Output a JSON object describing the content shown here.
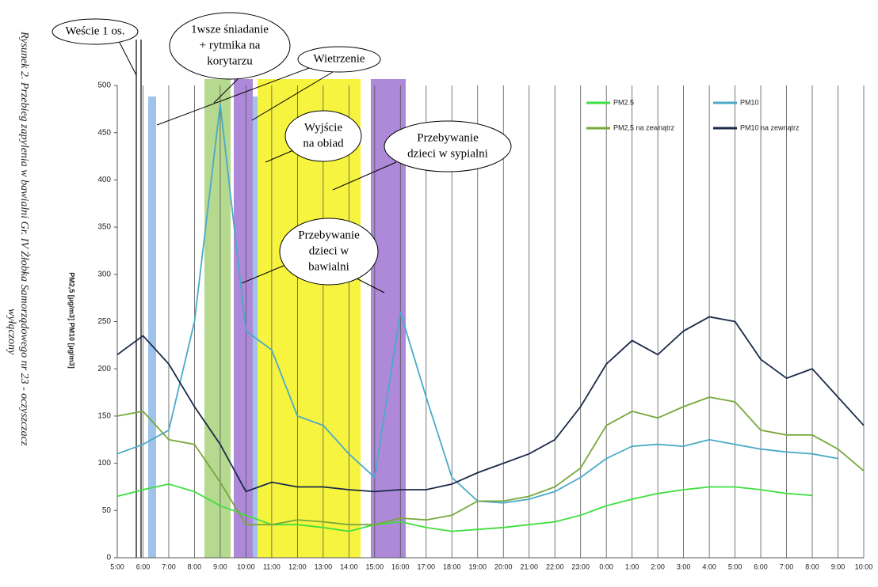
{
  "chart_data": {
    "type": "line",
    "caption": [
      "Rysunek 2. Przebieg zapylenia w bawialni Gr. IV Żłobka Samorządowego nr 23 - oczyszczacz",
      "wyłączony"
    ],
    "y_label": "PM2,5 [µg/m3] PM10 [µg/m3]",
    "categories": [
      "5:00",
      "6:00",
      "7:00",
      "8:00",
      "9:00",
      "10:00",
      "11:00",
      "12:00",
      "13:00",
      "14:00",
      "15:00",
      "16:00",
      "17:00",
      "18:00",
      "19:00",
      "20:00",
      "21:00",
      "22:00",
      "23:00",
      "0:00",
      "1:00",
      "2:00",
      "3:00",
      "4:00",
      "5:00",
      "6:00",
      "7:00",
      "8:00",
      "9:00",
      "10:00"
    ],
    "series": [
      {
        "name": "PM2.5",
        "color": "#3ee03e",
        "values": [
          65,
          72,
          78,
          70,
          55,
          45,
          35,
          35,
          32,
          28,
          35,
          38,
          32,
          28,
          30,
          32,
          35,
          38,
          45,
          55,
          62,
          68,
          72,
          75,
          75,
          72,
          68,
          66,
          null,
          null
        ]
      },
      {
        "name": "PM10",
        "color": "#4aaac8",
        "values": [
          110,
          120,
          135,
          250,
          480,
          240,
          220,
          150,
          140,
          110,
          85,
          260,
          170,
          85,
          60,
          58,
          62,
          70,
          85,
          105,
          118,
          120,
          118,
          125,
          120,
          115,
          112,
          110,
          105,
          null
        ]
      },
      {
        "name": "PM2,5 na zewnątrz",
        "color": "#78a83a",
        "values": [
          150,
          155,
          125,
          120,
          80,
          35,
          35,
          40,
          38,
          35,
          35,
          42,
          40,
          45,
          60,
          60,
          65,
          75,
          95,
          140,
          155,
          148,
          160,
          170,
          165,
          135,
          130,
          130,
          115,
          92
        ]
      },
      {
        "name": "PM10 na zewnątrz",
        "color": "#1a2a48",
        "values": [
          215,
          235,
          205,
          160,
          120,
          70,
          80,
          75,
          75,
          72,
          70,
          72,
          72,
          78,
          90,
          100,
          110,
          125,
          160,
          205,
          230,
          215,
          240,
          255,
          250,
          210,
          190,
          200,
          170,
          140
        ]
      }
    ],
    "ylim": [
      0,
      500
    ],
    "yticks": [
      0,
      50,
      100,
      150,
      200,
      250,
      300,
      350,
      400,
      450,
      500
    ],
    "grid": true,
    "annotations": [
      [
        "Weście 1 os."
      ],
      [
        "1wsze śniadanie",
        "+ rytmika na",
        "korytarzu"
      ],
      [
        "Wietrzenie"
      ],
      [
        "Wyjście",
        "na obiad"
      ],
      [
        "Przebywanie",
        "dzieci w sypialni"
      ],
      [
        "Przebywanie",
        "dzieci w",
        "bawialni"
      ]
    ]
  }
}
